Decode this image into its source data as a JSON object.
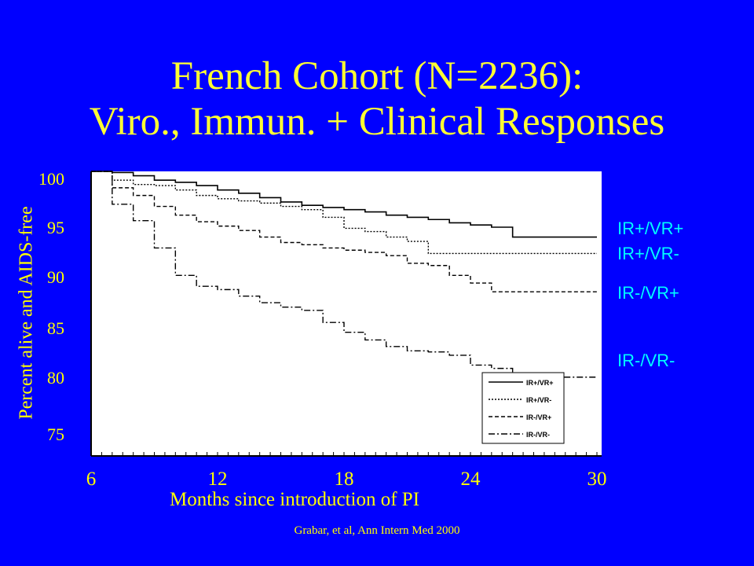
{
  "title": {
    "line1": "French Cohort (N=2236):",
    "line2": "Viro., Immun. + Clinical Responses"
  },
  "citation": "Grabar, et al, Ann Intern Med 2000",
  "colors": {
    "background": "#0000ff",
    "text": "#ffff00",
    "series_labels": "#00ffff",
    "plot_bg": "#ffffff"
  },
  "chart_data": {
    "type": "line",
    "xlabel": "Months since introduction of PI",
    "ylabel": "Percent alive and AIDS-free",
    "xlim": [
      6,
      30
    ],
    "ylim": [
      74,
      100
    ],
    "xticks": [
      "6",
      "12",
      "18",
      "24",
      "30"
    ],
    "yticks": [
      "100",
      "95",
      "90",
      "85",
      "80",
      "75"
    ],
    "series": [
      {
        "name": "IR+/VR+",
        "x": [
          6,
          7,
          8,
          9,
          10,
          11,
          12,
          13,
          14,
          15,
          16,
          17,
          18,
          19,
          20,
          21,
          22,
          23,
          24,
          25,
          26,
          27,
          28,
          29,
          30
        ],
        "y": [
          100,
          99.9,
          99.6,
          99.2,
          99.0,
          98.7,
          98.3,
          98.0,
          97.6,
          97.2,
          96.9,
          96.7,
          96.5,
          96.3,
          96.0,
          95.8,
          95.6,
          95.3,
          95.1,
          94.9,
          94.0,
          94.0,
          94.0,
          94.0,
          94.0
        ]
      },
      {
        "name": "IR+/VR-",
        "x": [
          6,
          7,
          8,
          9,
          10,
          11,
          12,
          13,
          14,
          15,
          16,
          17,
          18,
          19,
          20,
          21,
          22,
          23,
          24,
          25,
          26,
          27,
          28,
          29,
          30
        ],
        "y": [
          100,
          99.2,
          98.8,
          98.7,
          98.3,
          97.8,
          97.5,
          97.3,
          97.1,
          96.8,
          96.5,
          95.8,
          94.8,
          94.5,
          94.0,
          93.6,
          92.5,
          92.5,
          92.5,
          92.5,
          92.5,
          92.5,
          92.5,
          92.5,
          92.5
        ]
      },
      {
        "name": "IR-/VR+",
        "x": [
          6,
          7,
          8,
          9,
          10,
          11,
          12,
          13,
          14,
          15,
          16,
          17,
          18,
          19,
          20,
          21,
          22,
          23,
          24,
          25,
          26,
          27,
          28,
          29,
          30
        ],
        "y": [
          100,
          98.5,
          97.8,
          96.8,
          96.0,
          95.4,
          95.0,
          94.6,
          94.0,
          93.5,
          93.3,
          93.0,
          92.8,
          92.6,
          92.3,
          91.6,
          91.4,
          90.5,
          89.8,
          89.0,
          89.0,
          89.0,
          89.0,
          89.0,
          89.0
        ]
      },
      {
        "name": "IR-/VR-",
        "x": [
          6,
          7,
          8,
          9,
          10,
          11,
          12,
          13,
          14,
          15,
          16,
          17,
          18,
          19,
          20,
          21,
          22,
          23,
          24,
          25,
          26,
          27,
          28,
          29,
          30
        ],
        "y": [
          100,
          97.0,
          95.5,
          93.0,
          90.5,
          89.5,
          89.2,
          88.6,
          88.0,
          87.6,
          87.3,
          86.2,
          85.3,
          84.6,
          84.0,
          83.6,
          83.5,
          83.2,
          82.3,
          82.0,
          81.3,
          81.2,
          81.2,
          81.2,
          81.2
        ]
      }
    ],
    "legend_position": "bottom-right",
    "grid": false
  }
}
